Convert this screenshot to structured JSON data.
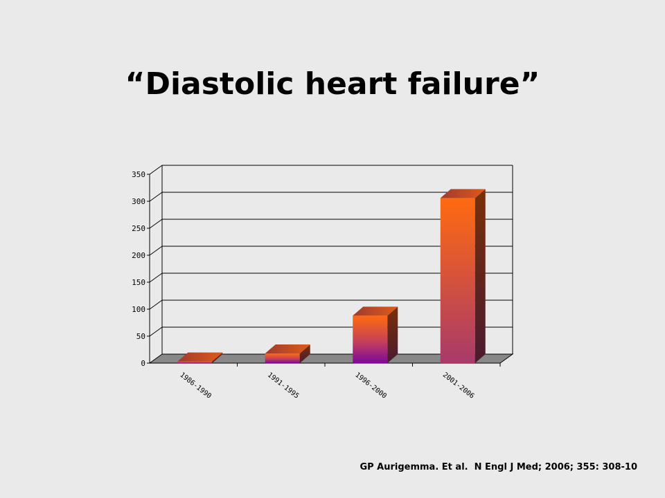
{
  "slide": {
    "title": "“Diastolic heart failure”",
    "citation": "GP Aurigemma. Et al.  N Engl J Med; 2006; 355: 308-10"
  },
  "chart_data": {
    "type": "bar",
    "categories": [
      "1986-1990",
      "1991-1995",
      "1996-2000",
      "2001-2006"
    ],
    "values": [
      3,
      18,
      88,
      306
    ],
    "ylim": [
      0,
      350
    ],
    "yticks": [
      0,
      50,
      100,
      150,
      200,
      250,
      300,
      350
    ],
    "grid": true,
    "style": "3d",
    "colors": {
      "bar_top": "#ff6a10",
      "bar_bottom": "#7a0a9a",
      "bar_side": "#6a2a10",
      "floor": "#888888"
    }
  }
}
